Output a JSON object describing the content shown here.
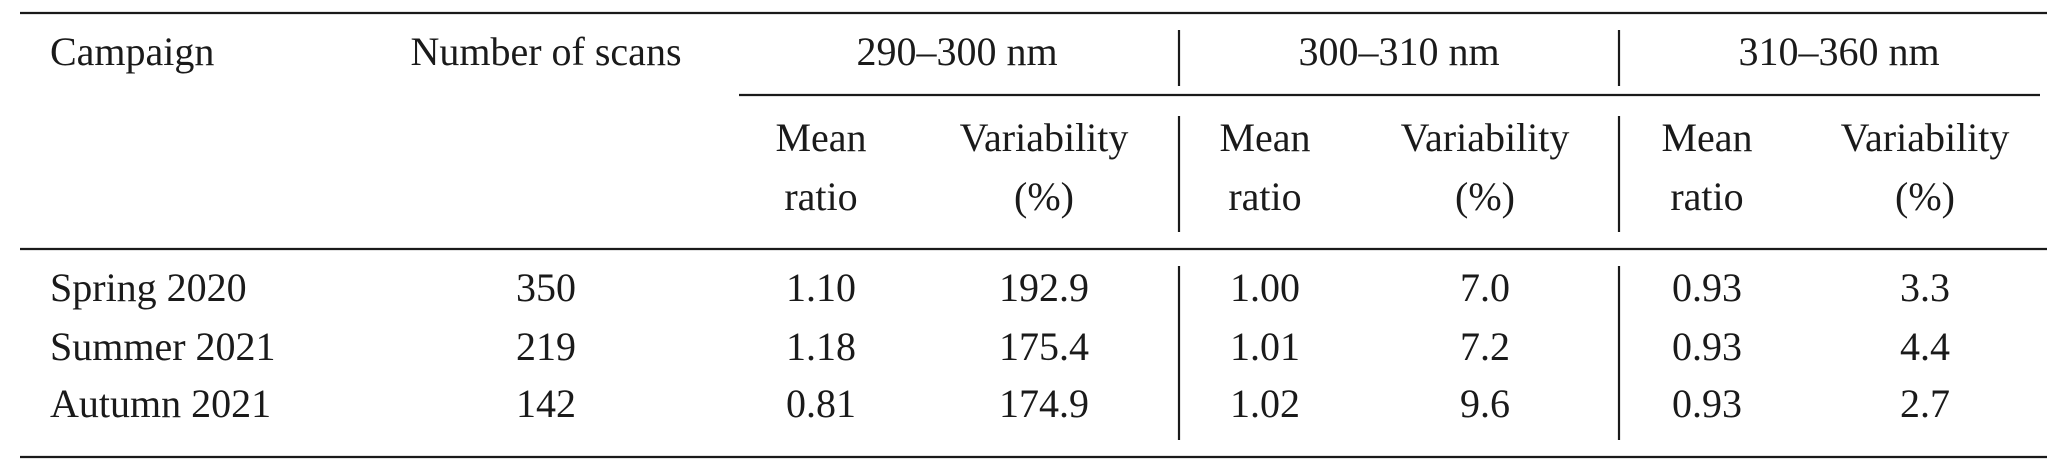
{
  "table": {
    "columns": [
      "Campaign",
      "Number of scans"
    ],
    "groups": [
      {
        "label": "290–300 nm",
        "subheaders": [
          [
            "Mean",
            "ratio"
          ],
          [
            "Variability",
            "(%)"
          ]
        ]
      },
      {
        "label": "300–310 nm",
        "subheaders": [
          [
            "Mean",
            "ratio"
          ],
          [
            "Variability",
            "(%)"
          ]
        ]
      },
      {
        "label": "310–360 nm",
        "subheaders": [
          [
            "Mean",
            "ratio"
          ],
          [
            "Variability",
            "(%)"
          ]
        ]
      }
    ],
    "rows": [
      [
        "Spring 2020",
        "350",
        "1.10",
        "192.9",
        "1.00",
        "7.0",
        "0.93",
        "3.3"
      ],
      [
        "Summer 2021",
        "219",
        "1.18",
        "175.4",
        "1.01",
        "7.2",
        "0.93",
        "4.4"
      ],
      [
        "Autumn 2021",
        "142",
        "0.81",
        "174.9",
        "1.02",
        "9.6",
        "0.93",
        "2.7"
      ]
    ]
  }
}
